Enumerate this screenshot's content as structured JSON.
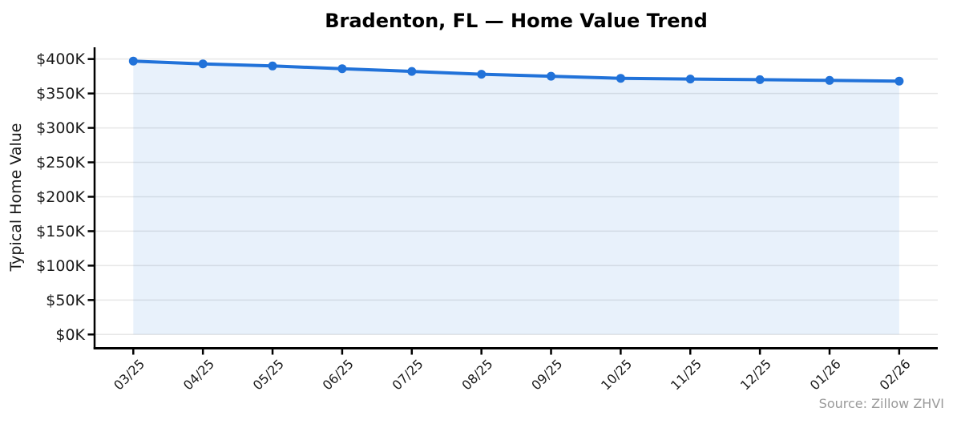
{
  "chart_data": {
    "type": "line",
    "title": "Bradenton, FL — Home Value Trend",
    "ylabel": "Typical Home Value",
    "xlabel": "",
    "source_note": "Source: Zillow ZHVI",
    "units": "USD thousands",
    "categories": [
      "03/25",
      "04/25",
      "05/25",
      "06/25",
      "07/25",
      "08/25",
      "09/25",
      "10/25",
      "11/25",
      "12/25",
      "01/26",
      "02/26"
    ],
    "series": [
      {
        "name": "Typical Home Value",
        "values": [
          397,
          393,
          390,
          386,
          382,
          378,
          375,
          372,
          371,
          370,
          369,
          368
        ]
      }
    ],
    "y_ticks": {
      "values": [
        0,
        50,
        100,
        150,
        200,
        250,
        300,
        350,
        400
      ],
      "labels": [
        "$0K",
        "$50K",
        "$100K",
        "$150K",
        "$200K",
        "$250K",
        "$300K",
        "$350K",
        "$400K"
      ]
    },
    "ylim": [
      0,
      400
    ],
    "grid": true,
    "legend": false,
    "area_fill": true,
    "marker": "circle",
    "colors": {
      "line": "#2172d9",
      "marker": "#2172d9",
      "area": "#2172d9",
      "area_opacity": 0.1,
      "grid": "#e7e7e7",
      "axis": "#000000",
      "title": "#000000",
      "tick_label": "#1a1a1a",
      "source": "#9a9a9a",
      "background": "#ffffff"
    }
  }
}
